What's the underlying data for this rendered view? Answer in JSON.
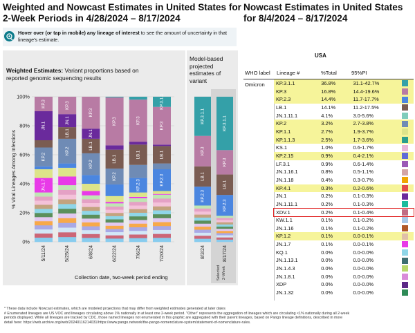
{
  "left_title_line1": "Weighted and Nowcast Estimates in United States for",
  "left_title_line2": "2-Week Periods in 4/28/2024 – 8/17/2024",
  "right_title_line1": "Nowcast Estimates in United States",
  "right_title_line2": "for 8/4/2024 – 8/17/2024",
  "hover_bold": "Hover over (or tap in mobile) any lineage of interest",
  "hover_rest": " to see the amount of uncertainty in that lineage's estimate.",
  "weighted_bold": "Weighted Estimates:",
  "weighted_rest": " Variant proportions based on",
  "weighted_line2": "reported genomic sequencing results",
  "model_line1": "Model-based",
  "model_line2": "projected",
  "model_line3": "estimates of",
  "model_line4": "variant",
  "y_axis_label": "% Viral Lineages Among Infections",
  "x_axis_label": "Collection date, two-week period ending",
  "selected_label_1": "Selected",
  "selected_label_2": "2-Week",
  "table_header": "USA",
  "col_who": "WHO label",
  "col_lineage": "Lineage #",
  "col_total": "%Total",
  "col_pi": "95%PI",
  "who_value": "Omicron",
  "footnote_1": "*      These data include Nowcast estimates, which are modeled projections that may differ from weighted estimates generated at later dates",
  "footnote_2": "# Enumerated lineages are US VOC and lineages circulating above 1% nationally in at least one 2-week period. \"Other\" represents the aggregation of lineages which are circulating <1% nationally during all 2-week",
  "footnote_3": "periods displayed.  While all lineages are tracked by CDC, those named lineages not enumerated in this graphic are aggregated with their parent lineages, based on Pango lineage definitions, described in more",
  "footnote_4": "detail here: https://web.archive.org/web/20240116214031/https://www.pango.network/the-pango-nomenclature-system/statement-of-nomenclature-rules.",
  "chart_data": {
    "type": "bar",
    "stacked": true,
    "ylim": [
      0,
      100
    ],
    "yticks": [
      "0%",
      "20%",
      "40%",
      "60%",
      "80%",
      "100%"
    ],
    "ylabel": "% Viral Lineages Among Infections",
    "xlabel": "Collection date, two-week period ending",
    "grid": true,
    "weighted": {
      "categories": [
        "5/11/24",
        "5/25/24",
        "6/8/24",
        "6/22/24",
        "7/6/24",
        "7/20/24"
      ],
      "series": [
        {
          "name": "KP.3.1.1",
          "color": "#34a0a8",
          "values": [
            0,
            0,
            0,
            0.5,
            2,
            7
          ]
        },
        {
          "name": "KP.3",
          "color": "#b87ba4",
          "values": [
            10,
            12,
            22,
            33,
            29,
            26
          ]
        },
        {
          "name": "JN.1",
          "color": "#6a2a9c",
          "values": [
            20,
            9,
            7,
            3,
            2,
            1
          ]
        },
        {
          "name": "LB.1",
          "color": "#7a5c52",
          "values": [
            5,
            8,
            10,
            13,
            14,
            12
          ]
        },
        {
          "name": "KP.2",
          "color": "#6f8bb5",
          "values": [
            13,
            17,
            15,
            11,
            9,
            4
          ]
        },
        {
          "name": "KP.2.3",
          "color": "#4b86e0",
          "values": [
            2,
            3,
            6,
            8,
            10,
            15
          ]
        },
        {
          "name": "KP.1.1",
          "color": "#dde48a",
          "values": [
            6,
            6,
            5,
            4,
            3,
            2
          ]
        },
        {
          "name": "JN.1.7",
          "color": "#e83ae8",
          "values": [
            10,
            6,
            3,
            1,
            1,
            0.5
          ]
        },
        {
          "name": "Other",
          "color": "#7d7d7d",
          "values": [
            34,
            39,
            32,
            26.5,
            30,
            32.5
          ]
        }
      ]
    },
    "nowcast": {
      "categories": [
        "8/3/24",
        "8/17/24"
      ],
      "series": [
        {
          "name": "KP.3.1.1",
          "color": "#34a0a8",
          "values": [
            27,
            36.8
          ]
        },
        {
          "name": "KP.3",
          "color": "#b87ba4",
          "values": [
            21,
            16.8
          ]
        },
        {
          "name": "LB.1",
          "color": "#7a5c52",
          "values": [
            14,
            14.1
          ]
        },
        {
          "name": "KP.2.3",
          "color": "#4b86e0",
          "values": [
            13,
            14.4
          ]
        },
        {
          "name": "Other",
          "color": "#7d7d7d",
          "values": [
            25,
            17.9
          ]
        }
      ]
    },
    "bar_labels": [
      [
        "",
        "KP.3",
        "JN.1",
        "",
        "KP.2",
        "",
        "",
        "JN.1.7",
        ""
      ],
      [
        "",
        "KP.3",
        "JN.1",
        "LB.1",
        "KP.2",
        "",
        "",
        "",
        ""
      ],
      [
        "",
        "KP.3",
        "JN.1",
        "LB.1",
        "KP.2",
        "",
        "",
        "",
        ""
      ],
      [
        "",
        "KP.3",
        "",
        "LB.1",
        "KP.2",
        "",
        "",
        "",
        ""
      ],
      [
        "",
        "KP.3",
        "",
        "LB.1",
        "",
        "KP.2.3",
        "",
        "",
        ""
      ],
      [
        "KP.3.1.1",
        "KP.3",
        "",
        "LB.1",
        "",
        "KP.2.3",
        "",
        "",
        ""
      ]
    ],
    "nowcast_labels": [
      [
        "KP.3.1.1",
        "KP.3",
        "LB.1",
        "KP.2.3",
        ""
      ],
      [
        "KP.3.1.1",
        "KP.3",
        "LB.1",
        "KP.2.3",
        ""
      ]
    ],
    "table": [
      {
        "lineage": "KP.3.1.1",
        "total": "36.8%",
        "pi": "31.1-42.7%",
        "hl": true,
        "color": "#34a0a8"
      },
      {
        "lineage": "KP.3",
        "total": "16.8%",
        "pi": "14.4-19.6%",
        "hl": true,
        "color": "#b87ba4"
      },
      {
        "lineage": "KP.2.3",
        "total": "14.4%",
        "pi": "11.7-17.7%",
        "hl": true,
        "color": "#4b86e0"
      },
      {
        "lineage": "LB.1",
        "total": "14.1%",
        "pi": "11.2-17.5%",
        "hl": false,
        "color": "#7a5c52"
      },
      {
        "lineage": "JN.1.11.1",
        "total": "4.1%",
        "pi": "3.0-5.6%",
        "hl": false,
        "color": "#7fcdbb"
      },
      {
        "lineage": "KP.2",
        "total": "3.2%",
        "pi": "2.7-3.8%",
        "hl": true,
        "color": "#6f8bb5"
      },
      {
        "lineage": "KP.1.1",
        "total": "2.7%",
        "pi": "1.9-3.7%",
        "hl": true,
        "color": "#dde48a"
      },
      {
        "lineage": "KP.1.1.3",
        "total": "2.5%",
        "pi": "1.7-3.6%",
        "hl": true,
        "color": "#2a9d8f"
      },
      {
        "lineage": "KS.1",
        "total": "1.0%",
        "pi": "0.6-1.7%",
        "hl": false,
        "color": "#e8b4d8"
      },
      {
        "lineage": "KP.2.15",
        "total": "0.9%",
        "pi": "0.4-2.1%",
        "hl": true,
        "color": "#5e6bd8"
      },
      {
        "lineage": "LF.3.1",
        "total": "0.9%",
        "pi": "0.6-1.4%",
        "hl": false,
        "color": "#9b59b6"
      },
      {
        "lineage": "JN.1.16.1",
        "total": "0.8%",
        "pi": "0.5-1.1%",
        "hl": false,
        "color": "#d4a5a5"
      },
      {
        "lineage": "JN.1.18",
        "total": "0.4%",
        "pi": "0.3-0.7%",
        "hl": false,
        "color": "#f0a500"
      },
      {
        "lineage": "KP.4.1",
        "total": "0.3%",
        "pi": "0.2-0.6%",
        "hl": true,
        "color": "#e34a4a"
      },
      {
        "lineage": "JN.1",
        "total": "0.2%",
        "pi": "0.1-0.3%",
        "hl": false,
        "color": "#6a2a9c"
      },
      {
        "lineage": "JN.1.11.1",
        "total": "0.2%",
        "pi": "0.1-0.3%",
        "hl": false,
        "color": "#1abc9c"
      },
      {
        "lineage": "XDV.1",
        "total": "0.2%",
        "pi": "0.1-0.4%",
        "hl": false,
        "color": "#c06c84",
        "boxed": true
      },
      {
        "lineage": "KW.1.1",
        "total": "0.1%",
        "pi": "0.1-0.2%",
        "hl": false,
        "color": "#a8c8e8"
      },
      {
        "lineage": "JN.1.16",
        "total": "0.1%",
        "pi": "0.1-0.2%",
        "hl": false,
        "color": "#b15928"
      },
      {
        "lineage": "KP.1.2",
        "total": "0.1%",
        "pi": "0.0-0.1%",
        "hl": true,
        "color": "#e0c0a8"
      },
      {
        "lineage": "JN.1.7",
        "total": "0.1%",
        "pi": "0.0-0.1%",
        "hl": false,
        "color": "#e83ae8"
      },
      {
        "lineage": "KQ.1",
        "total": "0.0%",
        "pi": "0.0-0.0%",
        "hl": false,
        "color": "#8fd6e8"
      },
      {
        "lineage": "JN.1.13.1",
        "total": "0.0%",
        "pi": "0.0-0.0%",
        "hl": false,
        "color": "#3c6e71"
      },
      {
        "lineage": "JN.1.4.3",
        "total": "0.0%",
        "pi": "0.0-0.0%",
        "hl": false,
        "color": "#b8d86b"
      },
      {
        "lineage": "JN.1.8.1",
        "total": "0.0%",
        "pi": "0.0-0.0%",
        "hl": false,
        "color": "#d98cd9"
      },
      {
        "lineage": "XDP",
        "total": "0.0%",
        "pi": "0.0-0.0%",
        "hl": false,
        "color": "#5b2a86"
      },
      {
        "lineage": "JN.1.32",
        "total": "0.0%",
        "pi": "0.0-0.0%",
        "hl": false,
        "color": "#2e8b57"
      }
    ]
  }
}
